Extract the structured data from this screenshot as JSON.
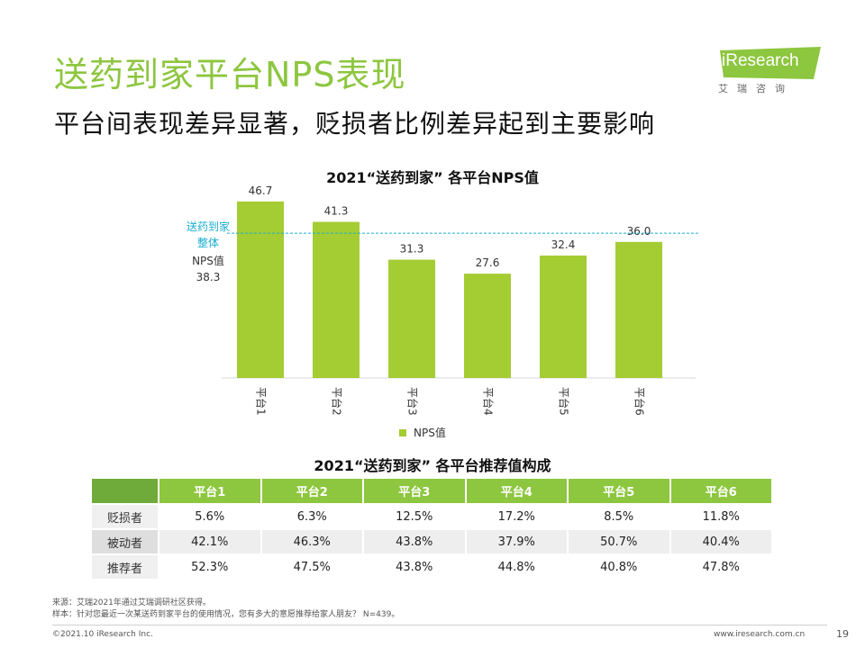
{
  "header": {
    "title": "送药到家平台NPS表现",
    "subtitle": "平台间表现差异显著，贬损者比例差异起到主要影响"
  },
  "logo": {
    "text": "iResearch",
    "subtext": "艾瑞咨询"
  },
  "chart_data": {
    "type": "bar",
    "title": "2021“送药到家” 各平台NPS值",
    "categories": [
      "平台1",
      "平台2",
      "平台3",
      "平台4",
      "平台5",
      "平台6"
    ],
    "values": [
      46.7,
      41.3,
      31.3,
      27.6,
      32.4,
      36.0
    ],
    "value_labels": [
      "46.7",
      "41.3",
      "31.3",
      "27.6",
      "32.4",
      "36.0"
    ],
    "series_name": "NPS值",
    "ylim": [
      0,
      50
    ],
    "reference_line": {
      "value": 38.3,
      "label_lines_cyan": [
        "送药到家",
        "整体"
      ],
      "label_lines_dark": [
        "NPS值",
        "38.3"
      ]
    },
    "colors": {
      "bar": "#a4cc33",
      "reference": "#1aaed0"
    },
    "legend_position": "bottom"
  },
  "table": {
    "title": "2021“送药到家” 各平台推荐值构成",
    "headers": [
      "平台1",
      "平台2",
      "平台3",
      "平台4",
      "平台5",
      "平台6"
    ],
    "rows": [
      {
        "label": "贬损者",
        "values": [
          "5.6%",
          "6.3%",
          "12.5%",
          "17.2%",
          "8.5%",
          "11.8%"
        ]
      },
      {
        "label": "被动者",
        "values": [
          "42.1%",
          "46.3%",
          "43.8%",
          "37.9%",
          "50.7%",
          "40.4%"
        ]
      },
      {
        "label": "推荐者",
        "values": [
          "52.3%",
          "47.5%",
          "43.8%",
          "44.8%",
          "40.8%",
          "47.8%"
        ]
      }
    ]
  },
  "footer": {
    "source": "来源：艾瑞2021年通过艾瑞调研社区获得。",
    "sample": "样本：针对您最近一次某送药到家平台的使用情况，您有多大的意愿推荐给家人朋友？ N=439。",
    "copyright": "©2021.10 iResearch Inc.",
    "website": "www.iresearch.com.cn",
    "page_number": "19"
  },
  "colors": {
    "accent": "#8dc63f",
    "table_header": "#8dc63f",
    "table_corner": "#6fab3a"
  }
}
